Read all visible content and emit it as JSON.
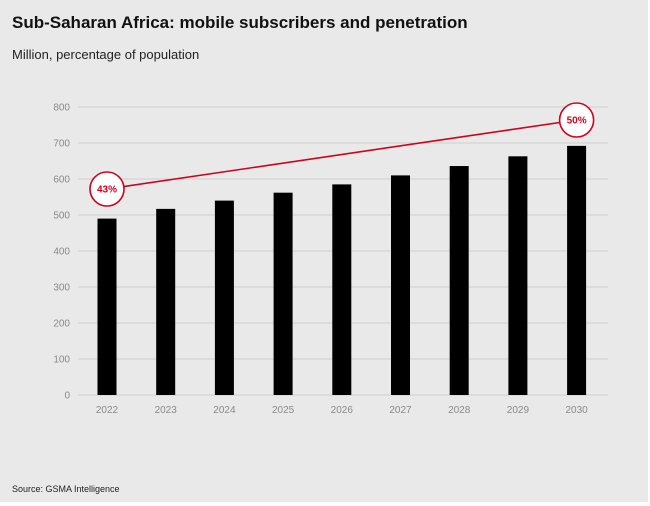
{
  "title": "Sub-Saharan Africa: mobile subscribers and penetration",
  "subtitle": "Million, percentage of population",
  "source": "Source: GSMA Intelligence",
  "colors": {
    "bar": "#000000",
    "line": "#d0021b",
    "grid": "#cfcfcf",
    "background": "#e9e9e9"
  },
  "chart_data": {
    "type": "bar",
    "categories": [
      "2022",
      "2023",
      "2024",
      "2025",
      "2026",
      "2027",
      "2028",
      "2029",
      "2030"
    ],
    "series": [
      {
        "values": [
          490,
          517,
          540,
          562,
          585,
          610,
          636,
          663,
          692
        ]
      }
    ],
    "line_series": {
      "values": [
        0.43,
        null,
        null,
        null,
        null,
        null,
        null,
        null,
        0.5
      ],
      "labels": [
        "43%",
        "",
        "",
        "",
        "",
        "",
        "",
        "",
        "50%"
      ]
    },
    "ylim": [
      0,
      800
    ],
    "yticks": [
      "0",
      "100",
      "200",
      "300",
      "400",
      "500",
      "600",
      "700",
      "800"
    ],
    "grid": true,
    "xlabel": "",
    "ylabel": ""
  }
}
